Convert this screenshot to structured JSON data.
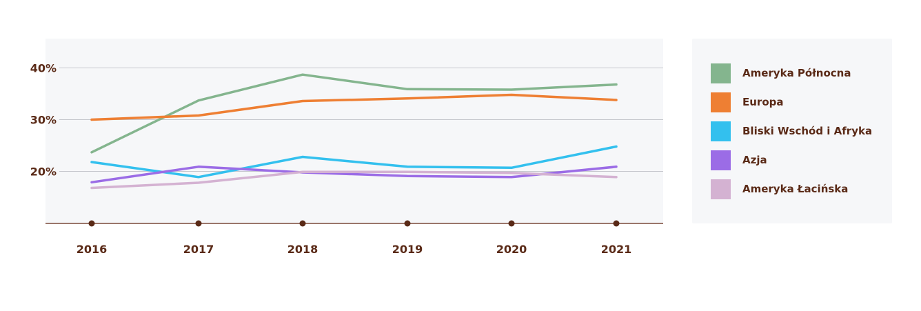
{
  "chart_data": {
    "type": "line",
    "x": [
      "2016",
      "2017",
      "2018",
      "2019",
      "2020",
      "2021"
    ],
    "ylim": [
      10,
      45
    ],
    "yticks": [
      20,
      30,
      40
    ],
    "ytick_labels": [
      "20%",
      "30%",
      "40%"
    ],
    "grid": true,
    "legend_position": "right",
    "series": [
      {
        "name": "Ameryka Północna",
        "color": "#84b58e",
        "values": [
          23.7,
          33.7,
          38.7,
          35.9,
          35.8,
          36.8
        ]
      },
      {
        "name": "Europa",
        "color": "#ee7f33",
        "values": [
          30.0,
          30.8,
          33.6,
          34.1,
          34.8,
          33.8
        ]
      },
      {
        "name": "Bliski Wschód i Afryka",
        "color": "#33c0ee",
        "values": [
          21.8,
          18.9,
          22.8,
          20.9,
          20.7,
          24.8
        ]
      },
      {
        "name": "Azja",
        "color": "#9b6ce6",
        "values": [
          17.9,
          20.9,
          19.8,
          19.1,
          18.9,
          20.9
        ]
      },
      {
        "name": "Ameryka Łacińska",
        "color": "#d4b2d2",
        "values": [
          16.8,
          17.8,
          19.9,
          19.9,
          19.7,
          18.9
        ]
      }
    ]
  }
}
